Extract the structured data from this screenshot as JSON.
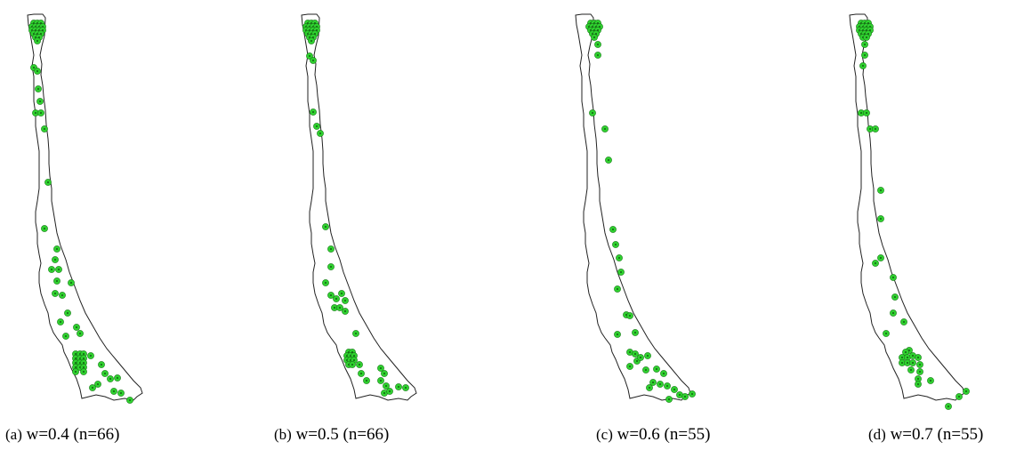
{
  "figure": {
    "panels": [
      {
        "label": "(a)",
        "caption": "w=0.4 (n=66)",
        "sites": [
          [
            38,
            26
          ],
          [
            42,
            26
          ],
          [
            46,
            26
          ],
          [
            36,
            30
          ],
          [
            40,
            30
          ],
          [
            44,
            30
          ],
          [
            48,
            30
          ],
          [
            36,
            34
          ],
          [
            40,
            34
          ],
          [
            44,
            34
          ],
          [
            48,
            34
          ],
          [
            38,
            38
          ],
          [
            42,
            38
          ],
          [
            46,
            38
          ],
          [
            40,
            42
          ],
          [
            44,
            42
          ],
          [
            42,
            46
          ],
          [
            38,
            76
          ],
          [
            42,
            80
          ],
          [
            43,
            100
          ],
          [
            45,
            114
          ],
          [
            40,
            127
          ],
          [
            46,
            127
          ],
          [
            50,
            145
          ],
          [
            54,
            205
          ],
          [
            50,
            257
          ],
          [
            64,
            280
          ],
          [
            62,
            292
          ],
          [
            58,
            303
          ],
          [
            66,
            303
          ],
          [
            64,
            316
          ],
          [
            62,
            330
          ],
          [
            70,
            332
          ],
          [
            80,
            318
          ],
          [
            76,
            352
          ],
          [
            68,
            362
          ],
          [
            74,
            378
          ],
          [
            86,
            368
          ],
          [
            90,
            375
          ],
          [
            85,
            398
          ],
          [
            90,
            398
          ],
          [
            94,
            398
          ],
          [
            85,
            403
          ],
          [
            90,
            403
          ],
          [
            94,
            403
          ],
          [
            85,
            408
          ],
          [
            90,
            408
          ],
          [
            94,
            408
          ],
          [
            85,
            413
          ],
          [
            90,
            413
          ],
          [
            94,
            413
          ],
          [
            85,
            418
          ],
          [
            94,
            418
          ],
          [
            102,
            400
          ],
          [
            114,
            410
          ],
          [
            118,
            420
          ],
          [
            124,
            426
          ],
          [
            110,
            432
          ],
          [
            104,
            436
          ],
          [
            132,
            425
          ],
          [
            128,
            440
          ],
          [
            136,
            442
          ],
          [
            146,
            450
          ]
        ]
      },
      {
        "label": "(b)",
        "caption": "w=0.5 (n=66)",
        "sites": [
          [
            346,
            26
          ],
          [
            350,
            26
          ],
          [
            354,
            26
          ],
          [
            344,
            30
          ],
          [
            348,
            30
          ],
          [
            352,
            30
          ],
          [
            356,
            30
          ],
          [
            344,
            34
          ],
          [
            348,
            34
          ],
          [
            352,
            34
          ],
          [
            356,
            34
          ],
          [
            346,
            38
          ],
          [
            350,
            38
          ],
          [
            354,
            38
          ],
          [
            348,
            42
          ],
          [
            352,
            42
          ],
          [
            350,
            46
          ],
          [
            348,
            63
          ],
          [
            352,
            68
          ],
          [
            352,
            126
          ],
          [
            356,
            142
          ],
          [
            360,
            150
          ],
          [
            366,
            255
          ],
          [
            372,
            280
          ],
          [
            372,
            300
          ],
          [
            366,
            318
          ],
          [
            372,
            332
          ],
          [
            378,
            336
          ],
          [
            384,
            330
          ],
          [
            388,
            338
          ],
          [
            376,
            346
          ],
          [
            382,
            346
          ],
          [
            388,
            350
          ],
          [
            400,
            375
          ],
          [
            392,
            396
          ],
          [
            396,
            396
          ],
          [
            390,
            400
          ],
          [
            394,
            400
          ],
          [
            398,
            400
          ],
          [
            390,
            405
          ],
          [
            394,
            405
          ],
          [
            398,
            405
          ],
          [
            392,
            410
          ],
          [
            396,
            410
          ],
          [
            404,
            410
          ],
          [
            406,
            420
          ],
          [
            412,
            428
          ],
          [
            428,
            414
          ],
          [
            432,
            420
          ],
          [
            428,
            428
          ],
          [
            434,
            434
          ],
          [
            432,
            442
          ],
          [
            438,
            440
          ],
          [
            448,
            435
          ],
          [
            456,
            436
          ]
        ]
      },
      {
        "label": "(c)",
        "caption": "w=0.6 (n=55)",
        "sites": [
          [
            664,
            26
          ],
          [
            668,
            26
          ],
          [
            672,
            26
          ],
          [
            662,
            30
          ],
          [
            666,
            30
          ],
          [
            670,
            30
          ],
          [
            674,
            30
          ],
          [
            664,
            34
          ],
          [
            668,
            34
          ],
          [
            672,
            34
          ],
          [
            666,
            38
          ],
          [
            670,
            38
          ],
          [
            668,
            42
          ],
          [
            672,
            50
          ],
          [
            672,
            62
          ],
          [
            666,
            127
          ],
          [
            680,
            145
          ],
          [
            684,
            180
          ],
          [
            689,
            258
          ],
          [
            692,
            275
          ],
          [
            696,
            290
          ],
          [
            698,
            306
          ],
          [
            694,
            325
          ],
          [
            704,
            354
          ],
          [
            708,
            355
          ],
          [
            714,
            374
          ],
          [
            694,
            376
          ],
          [
            708,
            396
          ],
          [
            714,
            398
          ],
          [
            716,
            406
          ],
          [
            720,
            402
          ],
          [
            728,
            400
          ],
          [
            708,
            412
          ],
          [
            726,
            416
          ],
          [
            738,
            415
          ],
          [
            746,
            420
          ],
          [
            734,
            430
          ],
          [
            742,
            432
          ],
          [
            730,
            436
          ],
          [
            750,
            434
          ],
          [
            758,
            438
          ],
          [
            764,
            444
          ],
          [
            770,
            446
          ],
          [
            778,
            443
          ],
          [
            752,
            449
          ]
        ]
      },
      {
        "label": "(d)",
        "caption": "w=0.7 (n=55)",
        "sites": [
          [
            968,
            26
          ],
          [
            972,
            26
          ],
          [
            976,
            26
          ],
          [
            966,
            30
          ],
          [
            970,
            30
          ],
          [
            974,
            30
          ],
          [
            978,
            30
          ],
          [
            966,
            34
          ],
          [
            970,
            34
          ],
          [
            974,
            34
          ],
          [
            978,
            34
          ],
          [
            968,
            38
          ],
          [
            972,
            38
          ],
          [
            976,
            38
          ],
          [
            970,
            42
          ],
          [
            974,
            42
          ],
          [
            972,
            50
          ],
          [
            972,
            62
          ],
          [
            970,
            74
          ],
          [
            968,
            127
          ],
          [
            974,
            127
          ],
          [
            978,
            145
          ],
          [
            984,
            145
          ],
          [
            990,
            214
          ],
          [
            990,
            246
          ],
          [
            984,
            296
          ],
          [
            990,
            290
          ],
          [
            1004,
            312
          ],
          [
            1006,
            334
          ],
          [
            1004,
            352
          ],
          [
            1016,
            362
          ],
          [
            996,
            375
          ],
          [
            1022,
            394
          ],
          [
            1018,
            396
          ],
          [
            1014,
            402
          ],
          [
            1020,
            402
          ],
          [
            1026,
            400
          ],
          [
            1032,
            402
          ],
          [
            1014,
            408
          ],
          [
            1020,
            408
          ],
          [
            1026,
            408
          ],
          [
            1034,
            410
          ],
          [
            1024,
            416
          ],
          [
            1034,
            418
          ],
          [
            1032,
            426
          ],
          [
            1046,
            428
          ],
          [
            1032,
            432
          ],
          [
            1086,
            440
          ],
          [
            1078,
            446
          ],
          [
            1066,
            457
          ]
        ]
      }
    ]
  }
}
